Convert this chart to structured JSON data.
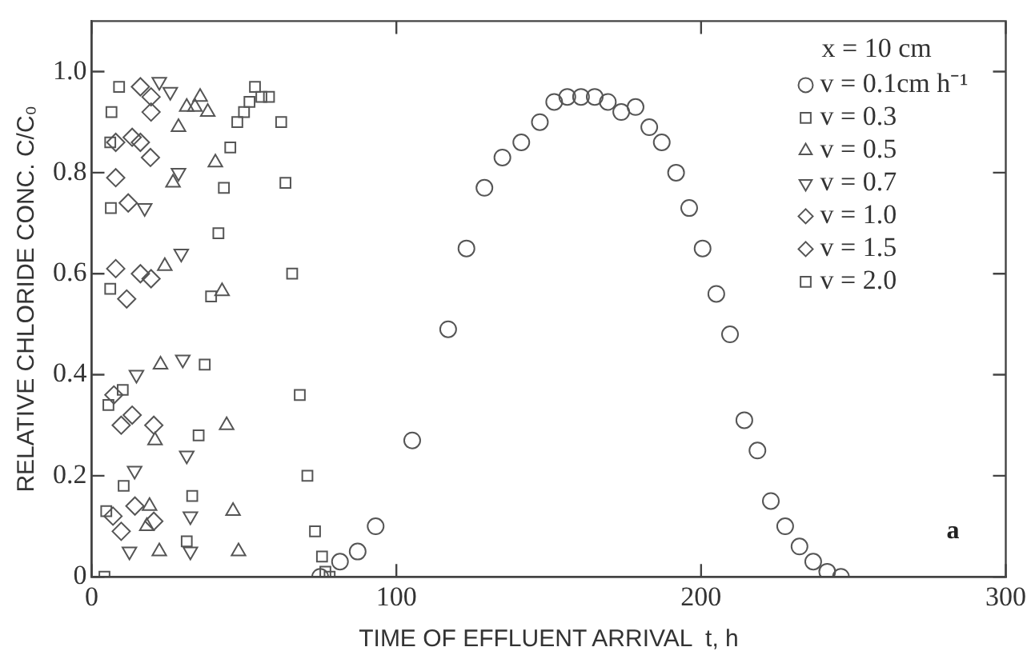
{
  "chart_data": {
    "type": "scatter",
    "xlabel": "TIME OF EFFLUENT ARRIVAL  t, h",
    "ylabel": "RELATIVE CHLORIDE CONC. C/C₀",
    "legend_title": "x = 10 cm",
    "legend": "top right",
    "grid": false,
    "xlim": [
      0,
      300
    ],
    "xticks": [
      0,
      100,
      200,
      300
    ],
    "ylim": [
      0,
      1.1
    ],
    "yticks": [
      0,
      {
        "value": 0.2,
        "label": "0.2"
      },
      {
        "value": 0.4,
        "label": "0.4"
      },
      {
        "value": 0.6,
        "label": "0.6"
      },
      {
        "value": 0.8,
        "label": "0.8"
      },
      {
        "value": 1,
        "label": "1.0"
      }
    ],
    "annotations": [
      "a"
    ],
    "series": [
      {
        "name": "v = 0.1cm h⁻¹",
        "color": "#555555",
        "marker": "circle",
        "x": [
          75,
          81.5,
          87.3,
          93.2,
          105.2,
          117,
          123,
          128.9,
          134.8,
          141,
          147.1,
          151.8,
          156.1,
          160.6,
          165.1,
          169.4,
          173.8,
          178.5,
          183,
          187.1,
          191.8,
          196.1,
          200.5,
          205,
          209.5,
          214.2,
          218.5,
          222.9,
          227.6,
          232.3,
          236.8,
          241.4,
          245.9
        ],
        "values": [
          0,
          0.03,
          0.05,
          0.1,
          0.27,
          0.49,
          0.65,
          0.77,
          0.83,
          0.86,
          0.9,
          0.94,
          0.95,
          0.95,
          0.95,
          0.94,
          0.92,
          0.93,
          0.89,
          0.86,
          0.8,
          0.73,
          0.65,
          0.56,
          0.48,
          0.31,
          0.25,
          0.15,
          0.1,
          0.06,
          0.03,
          0.01,
          0
        ]
      },
      {
        "name": "v = 0.3",
        "color": "#555555",
        "marker": "square",
        "x": [
          9,
          31.2,
          33,
          35.1,
          37.1,
          39.2,
          41.6,
          43.4,
          45.5,
          47.8,
          50,
          51.8,
          53.6,
          55.7,
          58.2,
          62.2,
          63.6,
          65.8,
          68.3,
          70.8,
          73.3,
          75.6,
          76.7,
          78.1
        ],
        "values": [
          0.97,
          0.07,
          0.16,
          0.28,
          0.42,
          0.555,
          0.68,
          0.77,
          0.85,
          0.9,
          0.92,
          0.94,
          0.97,
          0.95,
          0.95,
          0.9,
          0.78,
          0.6,
          0.36,
          0.2,
          0.09,
          0.04,
          0.01,
          0
        ]
      },
      {
        "name": "v = 0.5",
        "color": "#555555",
        "marker": "triangle",
        "x": [
          18.1,
          19,
          20.8,
          22.2,
          22.6,
          24,
          26.7,
          28.5,
          31.2,
          33.9,
          35.6,
          38.1,
          40.6,
          42.8,
          44.3,
          46.4,
          48.2
        ],
        "values": [
          0.1,
          0.14,
          0.27,
          0.05,
          0.42,
          0.615,
          0.78,
          0.89,
          0.93,
          0.93,
          0.95,
          0.92,
          0.82,
          0.565,
          0.3,
          0.13,
          0.05
        ]
      },
      {
        "name": "v = 0.7",
        "color": "#555555",
        "marker": "triangle-down",
        "x": [
          12.4,
          14.1,
          14.7,
          17.4,
          22.2,
          25.8,
          28.5,
          29.4,
          29.9,
          31.2,
          32.4,
          32.4
        ],
        "values": [
          0.05,
          0.21,
          0.4,
          0.73,
          0.98,
          0.96,
          0.8,
          0.64,
          0.43,
          0.24,
          0.12,
          0.05
        ]
      },
      {
        "name": "v = 1.0",
        "color": "#555555",
        "marker": "diamond",
        "x": [
          9.7,
          11.5,
          12,
          13.3,
          13.3,
          14.2,
          16,
          16,
          16,
          19.3,
          19.5,
          19.5,
          19.5,
          20.4,
          20.4,
          9.7
        ],
        "values": [
          0.3,
          0.55,
          0.74,
          0.87,
          0.32,
          0.14,
          0.97,
          0.86,
          0.6,
          0.83,
          0.95,
          0.92,
          0.59,
          0.3,
          0.11,
          0.09
        ]
      },
      {
        "name": "v = 1.5",
        "color": "#555555",
        "marker": "diamond",
        "x": [
          7,
          7.3,
          7.9,
          7.9,
          7.9
        ],
        "values": [
          0.12,
          0.36,
          0.61,
          0.79,
          0.86
        ]
      },
      {
        "name": "v = 2.0",
        "color": "#555555",
        "marker": "square",
        "x": [
          4.2,
          4.8,
          5.5,
          6.1,
          6.1,
          6.3,
          6.5,
          10.2,
          10.5
        ],
        "values": [
          0,
          0.13,
          0.34,
          0.57,
          0.86,
          0.73,
          0.92,
          0.37,
          0.18
        ]
      }
    ]
  }
}
